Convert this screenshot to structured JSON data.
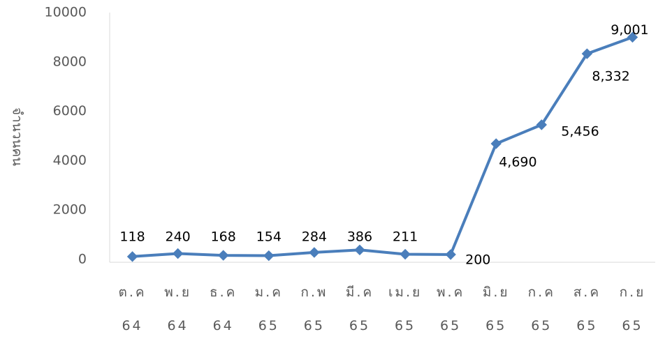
{
  "chart_data": {
    "type": "line",
    "categories": [
      [
        "ต.ค",
        "64"
      ],
      [
        "พ.ย",
        "64"
      ],
      [
        "ธ.ค",
        "64"
      ],
      [
        "ม.ค",
        "65"
      ],
      [
        "ก.พ",
        "65"
      ],
      [
        "มี.ค",
        "65"
      ],
      [
        "เม.ย",
        "65"
      ],
      [
        "พ.ค",
        "65"
      ],
      [
        "มิ.ย",
        "65"
      ],
      [
        "ก.ค",
        "65"
      ],
      [
        "ส.ค",
        "65"
      ],
      [
        "ก.ย",
        "65"
      ]
    ],
    "values": [
      118,
      240,
      168,
      154,
      284,
      386,
      211,
      200,
      4690,
      5456,
      8332,
      9001
    ],
    "data_labels": [
      "118",
      "240",
      "168",
      "154",
      "284",
      "386",
      "211",
      "200",
      "4,690",
      "5,456",
      "8,332",
      "9,001"
    ],
    "ylabel": "จำนวนคน",
    "ylim": [
      0,
      10000
    ],
    "yticks": [
      "0",
      "2000",
      "4000",
      "6000",
      "8000",
      "10000"
    ],
    "grid": false,
    "legend": false,
    "series_color": "#4a7ebb"
  }
}
